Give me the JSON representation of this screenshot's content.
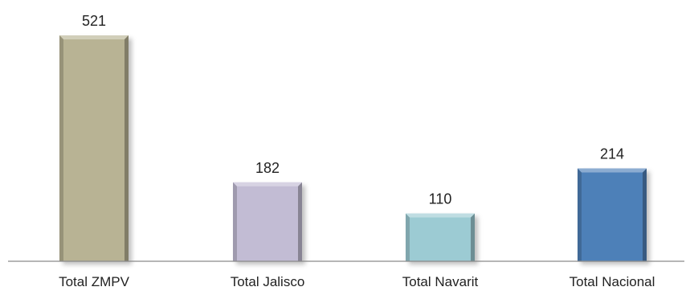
{
  "chart_data": {
    "type": "bar",
    "categories": [
      "Total ZMPV",
      "Total Jalisco",
      "Total Navarit",
      "Total Nacional"
    ],
    "values": [
      521,
      182,
      110,
      214
    ],
    "data_labels": [
      "521",
      "182",
      "110",
      "214"
    ],
    "bar_colors": [
      "#b8b394",
      "#c2bcd4",
      "#9ccbd3",
      "#4e80b8"
    ],
    "title": "",
    "xlabel": "",
    "ylabel": "",
    "ylim": [
      0,
      521
    ],
    "grid": false,
    "legend": "none"
  }
}
